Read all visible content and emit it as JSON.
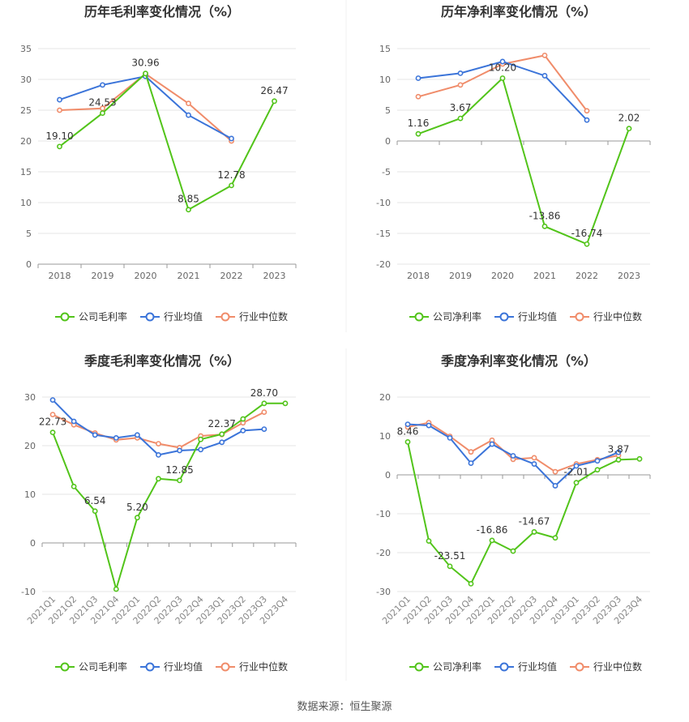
{
  "source_label": "数据来源：恒生聚源",
  "legend_names": {
    "company_gross": "公司毛利率",
    "company_net": "公司净利率",
    "industry_avg": "行业均值",
    "industry_median": "行业中位数"
  },
  "colors": {
    "company": "#52c41a",
    "industry_avg": "#3b74d9",
    "industry_median": "#f08c6a",
    "grid": "#e6e6e6",
    "axis": "#666666"
  },
  "chart_data": [
    {
      "id": "annual_gross",
      "type": "line",
      "title": "历年毛利率变化情况（%）",
      "categories": [
        "2018",
        "2019",
        "2020",
        "2021",
        "2022",
        "2023"
      ],
      "ylim": [
        0,
        35
      ],
      "yticks": [
        0,
        5,
        10,
        15,
        20,
        25,
        30,
        35
      ],
      "series": [
        {
          "key": "company",
          "name": "公司毛利率",
          "values": [
            19.1,
            24.53,
            30.96,
            8.85,
            12.78,
            26.47
          ],
          "labels": [
            "19.10",
            "24.53",
            "30.96",
            "8.85",
            "12.78",
            "26.47"
          ]
        },
        {
          "key": "industry_avg",
          "name": "行业均值",
          "values": [
            26.7,
            29.1,
            30.5,
            24.2,
            20.4,
            null
          ]
        },
        {
          "key": "industry_median",
          "name": "行业中位数",
          "values": [
            25.0,
            25.3,
            30.9,
            26.1,
            20.0,
            null
          ]
        }
      ]
    },
    {
      "id": "annual_net",
      "type": "line",
      "title": "历年净利率变化情况（%）",
      "categories": [
        "2018",
        "2019",
        "2020",
        "2021",
        "2022",
        "2023"
      ],
      "ylim": [
        -20,
        15
      ],
      "yticks": [
        -20,
        -15,
        -10,
        -5,
        0,
        5,
        10,
        15
      ],
      "series": [
        {
          "key": "company",
          "name": "公司净利率",
          "values": [
            1.16,
            3.67,
            10.2,
            -13.86,
            -16.74,
            2.02
          ],
          "labels": [
            "1.16",
            "3.67",
            "10.20",
            "-13.86",
            "-16.74",
            "2.02"
          ]
        },
        {
          "key": "industry_avg",
          "name": "行业均值",
          "values": [
            10.2,
            11.0,
            12.9,
            10.6,
            3.4,
            null
          ]
        },
        {
          "key": "industry_median",
          "name": "行业中位数",
          "values": [
            7.2,
            9.1,
            12.5,
            13.9,
            4.9,
            null
          ]
        }
      ]
    },
    {
      "id": "quarterly_gross",
      "type": "line",
      "title": "季度毛利率变化情况（%）",
      "categories": [
        "2021Q1",
        "2021Q2",
        "2021Q3",
        "2021Q4",
        "2022Q1",
        "2022Q2",
        "2022Q3",
        "2022Q4",
        "2023Q1",
        "2023Q2",
        "2023Q3",
        "2023Q4"
      ],
      "ylim": [
        -10,
        30
      ],
      "yticks": [
        -10,
        0,
        10,
        20,
        30
      ],
      "series": [
        {
          "key": "company",
          "name": "公司毛利率",
          "values": [
            22.73,
            11.6,
            6.54,
            -9.5,
            5.2,
            13.2,
            12.85,
            21.3,
            22.37,
            25.5,
            28.7,
            28.7
          ],
          "labels": [
            "22.73",
            "",
            "6.54",
            "",
            "5.20",
            "",
            "12.85",
            "",
            "22.37",
            "",
            "28.70",
            ""
          ]
        },
        {
          "key": "industry_avg",
          "name": "行业均值",
          "values": [
            29.4,
            25.0,
            22.2,
            21.6,
            22.2,
            18.1,
            19.0,
            19.2,
            20.7,
            23.1,
            23.4,
            null
          ]
        },
        {
          "key": "industry_median",
          "name": "行业中位数",
          "values": [
            26.4,
            24.3,
            22.6,
            21.2,
            21.6,
            20.4,
            19.6,
            22.0,
            22.3,
            24.7,
            26.9,
            null
          ]
        }
      ]
    },
    {
      "id": "quarterly_net",
      "type": "line",
      "title": "季度净利率变化情况（%）",
      "categories": [
        "2021Q1",
        "2021Q2",
        "2021Q3",
        "2021Q4",
        "2022Q1",
        "2022Q2",
        "2022Q3",
        "2022Q4",
        "2023Q1",
        "2023Q2",
        "2023Q3",
        "2023Q4"
      ],
      "ylim": [
        -30,
        20
      ],
      "yticks": [
        -30,
        -20,
        -10,
        0,
        10,
        20
      ],
      "series": [
        {
          "key": "company",
          "name": "公司净利率",
          "values": [
            8.46,
            -17.0,
            -23.51,
            -28.0,
            -16.86,
            -19.6,
            -14.67,
            -16.2,
            -2.01,
            1.3,
            3.87,
            4.1
          ],
          "labels": [
            "8.46",
            "",
            "-23.51",
            "",
            "-16.86",
            "",
            "-14.67",
            "",
            "-2.01",
            "",
            "3.87",
            ""
          ]
        },
        {
          "key": "industry_avg",
          "name": "行业均值",
          "values": [
            13.0,
            12.7,
            9.5,
            3.0,
            7.9,
            4.9,
            2.8,
            -2.8,
            2.3,
            3.6,
            5.8,
            null
          ]
        },
        {
          "key": "industry_median",
          "name": "行业中位数",
          "values": [
            12.3,
            13.4,
            9.9,
            5.9,
            8.9,
            4.0,
            4.4,
            0.8,
            2.8,
            3.9,
            5.0,
            null
          ]
        }
      ]
    }
  ]
}
